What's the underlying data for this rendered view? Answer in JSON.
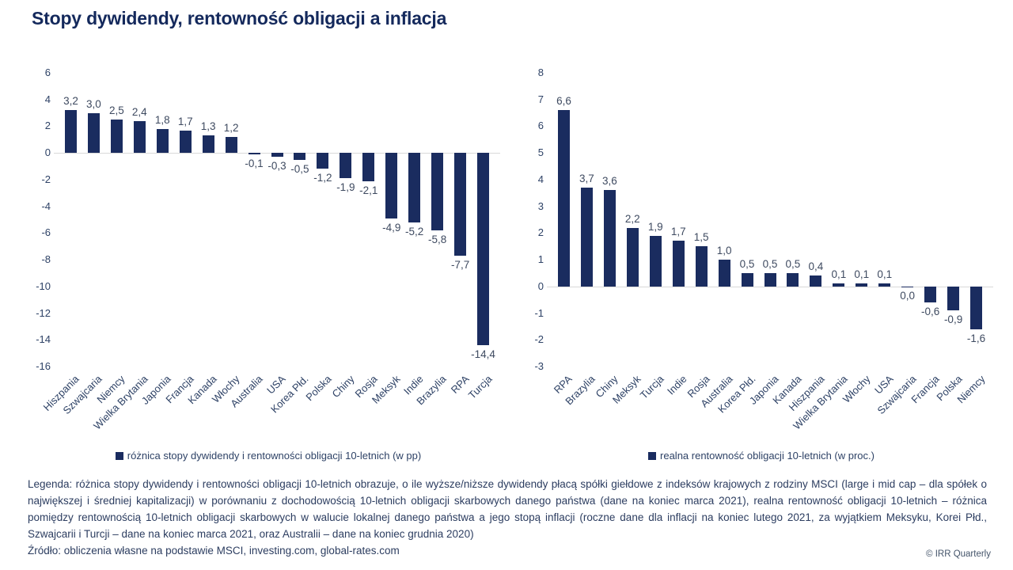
{
  "page": {
    "title": "Stopy dywidendy, rentowność obligacji a inflacja"
  },
  "colors": {
    "bar": "#1a2c5f",
    "title": "#14295c",
    "axis_text": "#2e4266",
    "value_label": "#3e4a60",
    "zero_line": "#d9d9d9",
    "footer_text": "#2c3d60",
    "copyright_text": "#44546a"
  },
  "chart_data": [
    {
      "type": "bar",
      "legend": "różnica stopy dywidendy i rentowności obligacji 10-letnich (w pp)",
      "categories": [
        "Hiszpania",
        "Szwajcaria",
        "Niemcy",
        "Wielka Brytania",
        "Japonia",
        "Francja",
        "Kanada",
        "Włochy",
        "Australia",
        "USA",
        "Korea Płd.",
        "Polska",
        "Chiny",
        "Rosja",
        "Meksyk",
        "Indie",
        "Brazylia",
        "RPA",
        "Turcja"
      ],
      "values": [
        3.2,
        3.0,
        2.5,
        2.4,
        1.8,
        1.7,
        1.3,
        1.2,
        -0.1,
        -0.3,
        -0.5,
        -1.2,
        -1.9,
        -2.1,
        -4.9,
        -5.2,
        -5.8,
        -7.7,
        -14.4
      ],
      "ylim": [
        -16,
        6
      ],
      "ytick_step": 2,
      "grid": false,
      "decimal_separator": ",",
      "legend_position": "bottom"
    },
    {
      "type": "bar",
      "legend": "realna rentowność obligacji 10-letnich (w proc.)",
      "categories": [
        "RPA",
        "Brazylia",
        "Chiny",
        "Meksyk",
        "Turcja",
        "Indie",
        "Rosja",
        "Australia",
        "Korea Płd.",
        "Japonia",
        "Kanada",
        "Hiszpania",
        "Wielka Brytania",
        "Włochy",
        "USA",
        "Szwajcaria",
        "Francja",
        "Polska",
        "Niemcy"
      ],
      "values": [
        6.6,
        3.7,
        3.6,
        2.2,
        1.9,
        1.7,
        1.5,
        1.0,
        0.5,
        0.5,
        0.5,
        0.4,
        0.1,
        0.1,
        0.1,
        0.0,
        -0.6,
        -0.9,
        -1.6
      ],
      "ylim": [
        -3,
        8
      ],
      "ytick_step": 1,
      "grid": false,
      "decimal_separator": ",",
      "legend_position": "bottom"
    }
  ],
  "footer": {
    "legend_text": "Legenda: różnica stopy dywidendy i rentowności obligacji 10-letnich obrazuje, o ile wyższe/niższe dywidendy płacą spółki giełdowe z indeksów krajowych z rodziny MSCI (large i mid cap – dla spółek o największej i średniej kapitalizacji) w porównaniu z dochodowością 10-letnich obligacji skarbowych danego państwa (dane na koniec marca 2021), realna rentowność obligacji 10-letnich – różnica pomiędzy rentownością 10-letnich obligacji skarbowych w walucie lokalnej danego państwa a jego stopą inflacji (roczne dane dla inflacji na koniec lutego 2021, za wyjątkiem Meksyku, Korei Płd., Szwajcarii i Turcji – dane na koniec marca 2021, oraz Australii – dane na koniec grudnia 2020)",
    "source_text": "Źródło: obliczenia własne na podstawie MSCI, investing.com, global-rates.com",
    "copyright": "© IRR Quarterly"
  }
}
